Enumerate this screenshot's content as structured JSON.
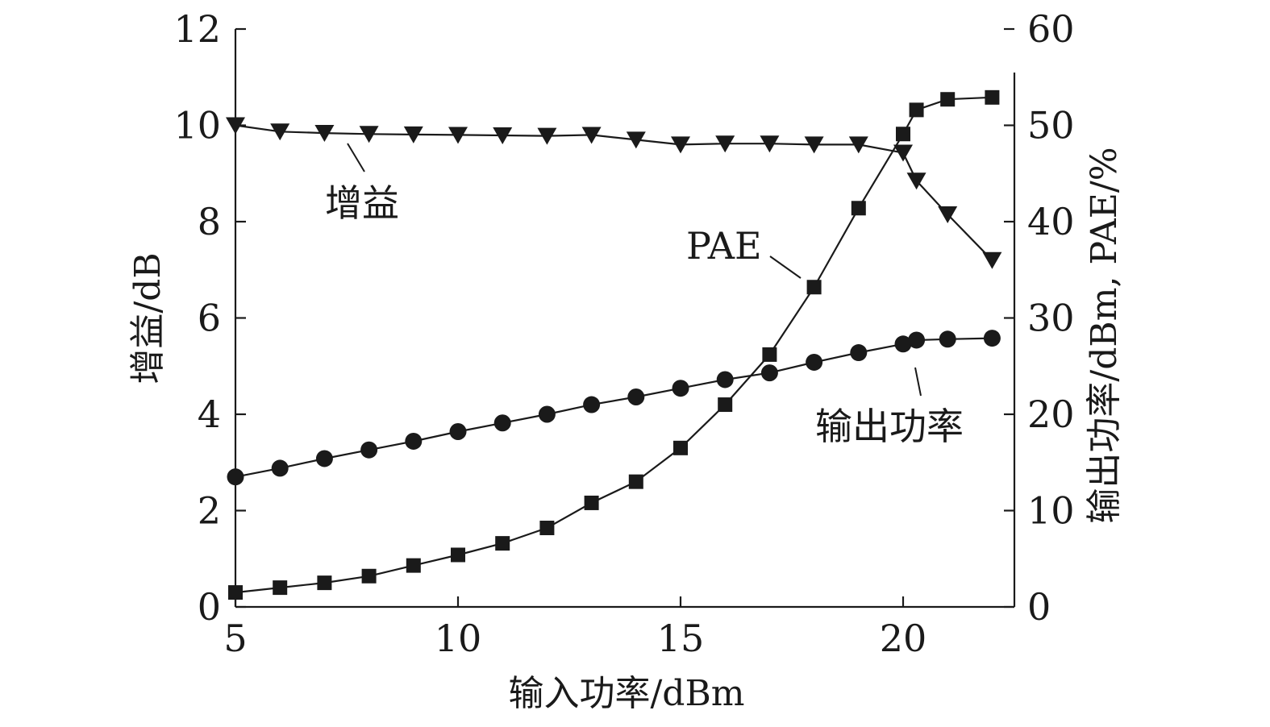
{
  "chart_data": {
    "type": "line",
    "xlabel": "输入功率/dBm",
    "ylabel_left": "增益/dB",
    "ylabel_right": "输出功率/dBm, PAE/%",
    "xlim": [
      5,
      22.5
    ],
    "ylim_left": [
      0,
      12
    ],
    "ylim_right": [
      0,
      60
    ],
    "x_ticks": [
      5,
      10,
      15,
      20
    ],
    "y_left_ticks": [
      0,
      2,
      4,
      6,
      8,
      10,
      12
    ],
    "y_right_ticks": [
      0,
      10,
      20,
      30,
      40,
      50,
      60
    ],
    "grid": false,
    "series": [
      {
        "name": "增益",
        "axis": "left",
        "marker": "triangle-down",
        "x": [
          5,
          6,
          7,
          8,
          9,
          10,
          11,
          12,
          13,
          14,
          15,
          16,
          17,
          18,
          19,
          20,
          20.3,
          21,
          22
        ],
        "y": [
          10.0,
          9.87,
          9.84,
          9.82,
          9.81,
          9.8,
          9.79,
          9.78,
          9.8,
          9.7,
          9.6,
          9.62,
          9.62,
          9.6,
          9.6,
          9.43,
          8.85,
          8.15,
          7.2
        ]
      },
      {
        "name": "PAE",
        "axis": "right",
        "marker": "square",
        "x": [
          5,
          6,
          7,
          8,
          9,
          10,
          11,
          12,
          13,
          14,
          15,
          16,
          17,
          18,
          19,
          20,
          20.3,
          21,
          22
        ],
        "y": [
          1.5,
          2.0,
          2.5,
          3.2,
          4.3,
          5.4,
          6.6,
          8.2,
          10.8,
          13.0,
          16.5,
          21.0,
          26.2,
          33.2,
          41.4,
          49.1,
          51.6,
          52.7,
          52.9
        ]
      },
      {
        "name": "输出功率",
        "axis": "right",
        "marker": "circle",
        "x": [
          5,
          6,
          7,
          8,
          9,
          10,
          11,
          12,
          13,
          14,
          15,
          16,
          17,
          18,
          19,
          20,
          20.3,
          21,
          22
        ],
        "y": [
          13.5,
          14.4,
          15.4,
          16.3,
          17.2,
          18.2,
          19.1,
          20.0,
          21.0,
          21.8,
          22.7,
          23.6,
          24.3,
          25.4,
          26.4,
          27.3,
          27.7,
          27.8,
          27.9
        ]
      }
    ],
    "annotations": [
      {
        "text": "增益",
        "series": "增益"
      },
      {
        "text": "PAE",
        "series": "PAE"
      },
      {
        "text": "输出功率",
        "series": "输出功率"
      }
    ]
  }
}
